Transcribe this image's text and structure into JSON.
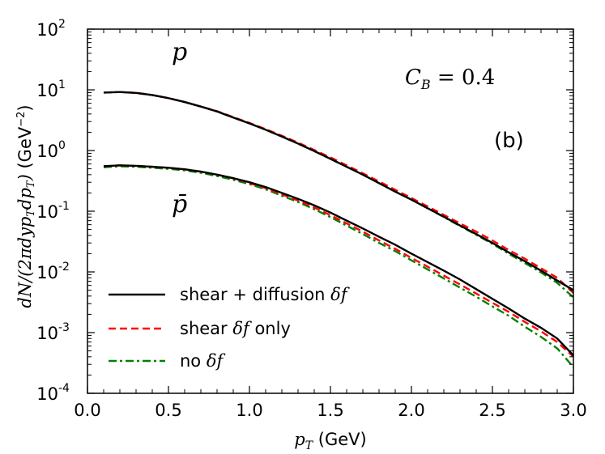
{
  "chart_data": {
    "type": "line",
    "title": "",
    "xlabel": "p",
    "xlabel_sub": "T",
    "xlabel_unit": " (GeV)",
    "ylabel": "dN/(2πdyp",
    "ylabel_sub1": "T",
    "ylabel_mid": "dp",
    "ylabel_sub2": "T",
    "ylabel_close": ")",
    "ylabel_unit": " (GeV",
    "ylabel_exp": "−2",
    "ylabel_unit_close": ")",
    "xlim": [
      0.0,
      3.0
    ],
    "ylim": [
      0.0001,
      100
    ],
    "yscale": "log",
    "xticks": [
      "0.0",
      "0.5",
      "1.0",
      "1.5",
      "2.0",
      "2.5",
      "3.0"
    ],
    "yticks": [
      {
        "base": "10",
        "exp": "2"
      },
      {
        "base": "10",
        "exp": "1"
      },
      {
        "base": "10",
        "exp": "0"
      },
      {
        "base": "10",
        "exp": "-1"
      },
      {
        "base": "10",
        "exp": "-2"
      },
      {
        "base": "10",
        "exp": "-3"
      },
      {
        "base": "10",
        "exp": "-4"
      }
    ],
    "annotations": {
      "proton": "p",
      "antiproton": "p̄",
      "cb_base": "C",
      "cb_sub": "B",
      "cb_value": " = 0.4",
      "panel": "(b)"
    },
    "legend": {
      "position": "lower-left",
      "entries": [
        {
          "text": "shear + diffusion ",
          "math": "δf",
          "suffix": "",
          "color": "#000000",
          "style": "solid"
        },
        {
          "text": "shear ",
          "math": "δf",
          "suffix": " only",
          "color": "#ff0000",
          "style": "dashed"
        },
        {
          "text": "no ",
          "math": "δf",
          "suffix": "",
          "color": "#008000",
          "style": "dashdot"
        }
      ]
    },
    "x": [
      0.1,
      0.2,
      0.3,
      0.4,
      0.5,
      0.6,
      0.7,
      0.8,
      0.9,
      1.0,
      1.1,
      1.2,
      1.3,
      1.4,
      1.5,
      1.6,
      1.7,
      1.8,
      1.9,
      2.0,
      2.1,
      2.2,
      2.3,
      2.4,
      2.5,
      2.6,
      2.7,
      2.8,
      2.9,
      3.0
    ],
    "series": [
      {
        "name": "p shear + diffusion δf",
        "group": "proton",
        "color": "#000000",
        "style": "solid",
        "values": [
          9.0,
          9.2,
          8.9,
          8.2,
          7.3,
          6.3,
          5.3,
          4.4,
          3.5,
          2.8,
          2.2,
          1.7,
          1.3,
          0.98,
          0.73,
          0.54,
          0.4,
          0.29,
          0.21,
          0.155,
          0.112,
          0.081,
          0.058,
          0.042,
          0.03,
          0.021,
          0.015,
          0.0105,
          0.0072,
          0.005
        ]
      },
      {
        "name": "p shear δf only",
        "group": "proton",
        "color": "#ff0000",
        "style": "dashed",
        "values": [
          9.0,
          9.2,
          8.9,
          8.2,
          7.3,
          6.3,
          5.3,
          4.45,
          3.55,
          2.85,
          2.25,
          1.75,
          1.35,
          1.02,
          0.77,
          0.57,
          0.42,
          0.31,
          0.225,
          0.165,
          0.12,
          0.087,
          0.063,
          0.046,
          0.033,
          0.023,
          0.0165,
          0.0115,
          0.008,
          0.0045
        ]
      },
      {
        "name": "p no δf",
        "group": "proton",
        "color": "#008000",
        "style": "dashdot",
        "values": [
          9.0,
          9.2,
          8.9,
          8.2,
          7.3,
          6.3,
          5.3,
          4.4,
          3.5,
          2.8,
          2.2,
          1.7,
          1.3,
          0.98,
          0.73,
          0.54,
          0.4,
          0.29,
          0.21,
          0.155,
          0.112,
          0.08,
          0.057,
          0.041,
          0.029,
          0.02,
          0.014,
          0.0098,
          0.0066,
          0.0038
        ]
      },
      {
        "name": "p̄ shear + diffusion δf",
        "group": "antiproton",
        "color": "#000000",
        "style": "solid",
        "values": [
          0.55,
          0.57,
          0.56,
          0.54,
          0.52,
          0.49,
          0.45,
          0.4,
          0.35,
          0.3,
          0.25,
          0.2,
          0.16,
          0.125,
          0.095,
          0.07,
          0.052,
          0.038,
          0.028,
          0.02,
          0.0145,
          0.0105,
          0.0075,
          0.0052,
          0.0036,
          0.0025,
          0.0017,
          0.0012,
          0.0008,
          0.00042
        ]
      },
      {
        "name": "p̄ shear δf only",
        "group": "antiproton",
        "color": "#ff0000",
        "style": "dashed",
        "values": [
          0.55,
          0.57,
          0.56,
          0.54,
          0.52,
          0.49,
          0.45,
          0.4,
          0.35,
          0.29,
          0.24,
          0.19,
          0.15,
          0.115,
          0.086,
          0.063,
          0.046,
          0.033,
          0.024,
          0.017,
          0.0122,
          0.0087,
          0.0062,
          0.0044,
          0.0031,
          0.0022,
          0.0015,
          0.00105,
          0.0007,
          0.0004
        ]
      },
      {
        "name": "p̄ no δf",
        "group": "antiproton",
        "color": "#008000",
        "style": "dashdot",
        "values": [
          0.53,
          0.55,
          0.54,
          0.52,
          0.5,
          0.47,
          0.43,
          0.38,
          0.33,
          0.28,
          0.23,
          0.18,
          0.142,
          0.108,
          0.08,
          0.058,
          0.042,
          0.03,
          0.022,
          0.0155,
          0.011,
          0.0078,
          0.0055,
          0.0039,
          0.0027,
          0.0019,
          0.00125,
          0.00085,
          0.00055,
          0.00027
        ]
      }
    ]
  }
}
